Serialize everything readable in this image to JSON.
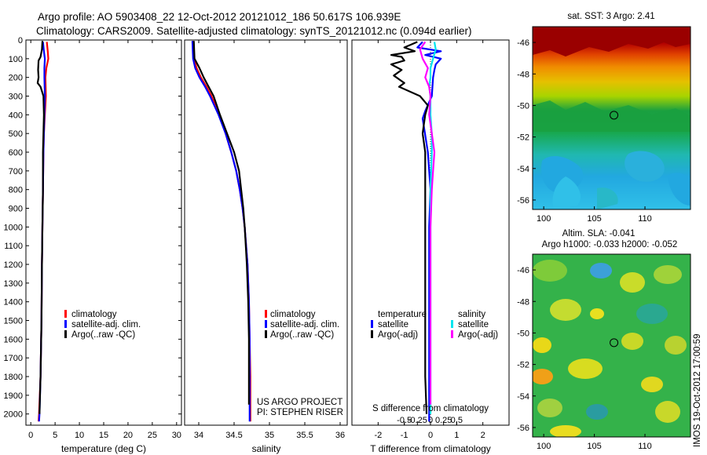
{
  "header": {
    "line1": "Argo profile: AO 5903408_22 12-Oct-2012 20121012_186 50.617S 106.939E",
    "line2": "Climatology: CARS2009. Satellite-adjusted climatology: synTS_20121012.nc (0.094d earlier)"
  },
  "side_note": "IMOS 19-Oct-2012 17:00:59",
  "colors": {
    "climatology": "#ff0000",
    "satellite": "#0000ff",
    "argo": "#000000",
    "satellite_sal": "#00e5ee",
    "argo_sal": "#ff00ff"
  },
  "chart_data": [
    {
      "type": "line",
      "panel": "temperature",
      "xlabel": "temperature (deg C)",
      "xlim": [
        -1,
        31
      ],
      "ylim": [
        2060,
        0
      ],
      "xticks": [
        0,
        5,
        10,
        15,
        20,
        25,
        30
      ],
      "yticks": [
        0,
        100,
        200,
        300,
        400,
        500,
        600,
        700,
        800,
        900,
        1000,
        1100,
        1200,
        1300,
        1400,
        1500,
        1600,
        1700,
        1800,
        1900,
        2000
      ],
      "legend": [
        "climatology",
        "satellite-adj. clim.",
        "Argo(..raw -QC)"
      ],
      "series": [
        {
          "name": "climatology",
          "color": "#ff0000",
          "y": [
            10,
            60,
            100,
            150,
            200,
            300,
            400,
            500,
            600,
            800,
            1000,
            1200,
            1500,
            1800,
            2000,
            2040
          ],
          "x": [
            3.3,
            3.5,
            3.6,
            3.2,
            3.0,
            3.1,
            2.9,
            2.7,
            2.6,
            2.5,
            2.4,
            2.3,
            2.2,
            2.0,
            1.7,
            1.6
          ]
        },
        {
          "name": "satellite-adj. clim.",
          "color": "#0000ff",
          "y": [
            10,
            60,
            100,
            150,
            200,
            300,
            400,
            500,
            600,
            800,
            1000,
            1200,
            1500,
            1800,
            2000,
            2040
          ],
          "x": [
            2.5,
            2.7,
            2.9,
            2.8,
            2.8,
            2.9,
            2.8,
            2.7,
            2.6,
            2.5,
            2.4,
            2.3,
            2.2,
            2.0,
            1.8,
            1.7
          ]
        },
        {
          "name": "Argo(..raw -QC)",
          "color": "#000000",
          "y": [
            5,
            50,
            90,
            110,
            160,
            200,
            230,
            250,
            300,
            400,
            500,
            600,
            800,
            1000,
            1200,
            1500,
            1800,
            2000
          ],
          "x": [
            2.4,
            2.3,
            2.0,
            1.6,
            1.5,
            1.6,
            1.4,
            2.0,
            2.6,
            2.7,
            2.6,
            2.5,
            2.5,
            2.4,
            2.3,
            2.2,
            2.0,
            1.8
          ]
        }
      ]
    },
    {
      "type": "line",
      "panel": "salinity",
      "xlabel": "salinity",
      "xlim": [
        33.8,
        36.1
      ],
      "ylim": [
        2060,
        0
      ],
      "xticks": [
        34,
        34.5,
        35,
        35.5,
        36
      ],
      "legend": [
        "climatology",
        "satellite-adj. clim.",
        "Argo(..raw -QC)"
      ],
      "annotations": [
        "US ARGO PROJECT",
        "PI: STEPHEN RISER"
      ],
      "series": [
        {
          "name": "climatology",
          "color": "#ff0000",
          "y": [
            5,
            100,
            150,
            200,
            250,
            300,
            400,
            500,
            600,
            700,
            800,
            900,
            1000,
            1200,
            1400,
            1600,
            1800,
            2000,
            2040
          ],
          "x": [
            33.92,
            33.93,
            33.97,
            34.03,
            34.11,
            34.18,
            34.29,
            34.38,
            34.46,
            34.53,
            34.58,
            34.62,
            34.65,
            34.69,
            34.71,
            34.72,
            34.73,
            34.73,
            34.73
          ]
        },
        {
          "name": "satellite-adj. clim.",
          "color": "#0000ff",
          "y": [
            5,
            100,
            150,
            200,
            250,
            300,
            400,
            500,
            600,
            700,
            800,
            900,
            1000,
            1200,
            1400,
            1600,
            1800,
            2000,
            2040
          ],
          "x": [
            33.91,
            33.92,
            33.95,
            34.01,
            34.09,
            34.16,
            34.28,
            34.38,
            34.46,
            34.53,
            34.58,
            34.62,
            34.65,
            34.69,
            34.71,
            34.72,
            34.72,
            34.72,
            34.72
          ]
        },
        {
          "name": "Argo(..raw -QC)",
          "color": "#000000",
          "y": [
            5,
            100,
            150,
            200,
            250,
            300,
            400,
            500,
            600,
            700,
            800,
            900,
            1000,
            1200,
            1400,
            1600,
            1800,
            1950
          ],
          "x": [
            33.93,
            33.94,
            34.01,
            34.07,
            34.14,
            34.21,
            34.3,
            34.4,
            34.5,
            34.57,
            34.6,
            34.63,
            34.65,
            34.68,
            34.7,
            34.71,
            34.71,
            34.71
          ]
        }
      ]
    },
    {
      "type": "line",
      "panel": "differences",
      "xlabel": "T difference from climatology",
      "top_label": "S difference from climatology",
      "xlim": [
        -3,
        3
      ],
      "ylim": [
        2060,
        0
      ],
      "xticks": [
        -2,
        -1,
        0,
        1,
        2
      ],
      "top_ticks": [
        {
          "v": -1.0,
          "label": "-0.5"
        },
        {
          "v": -0.5,
          "label": "-0.25"
        },
        {
          "v": 0,
          "label": "0"
        },
        {
          "v": 0.5,
          "label": "0.25"
        },
        {
          "v": 1.0,
          "label": "0.5"
        }
      ],
      "legend_headers": [
        "temperature",
        "salinity"
      ],
      "legend": [
        "satellite",
        "Argo(-adj)",
        "satellite",
        "Argo(-adj)"
      ],
      "series": [
        {
          "name": "satellite",
          "group": "temperature",
          "color": "#0000ff",
          "y": [
            10,
            40,
            60,
            80,
            100,
            130,
            160,
            200,
            300,
            380,
            420,
            600,
            800,
            1000,
            1200,
            1500,
            1800,
            2000,
            2040
          ],
          "x": [
            -0.3,
            -0.5,
            0.4,
            -0.2,
            0.4,
            0.2,
            0.15,
            0.1,
            0.05,
            -0.2,
            -0.3,
            -0.1,
            0.0,
            -0.05,
            -0.05,
            -0.05,
            -0.05,
            -0.05,
            -0.05
          ]
        },
        {
          "name": "Argo(-adj)",
          "group": "temperature",
          "color": "#000000",
          "y": [
            10,
            40,
            60,
            80,
            90,
            110,
            130,
            160,
            190,
            230,
            250,
            300,
            350,
            400,
            500,
            600,
            800,
            1000,
            1200,
            1500,
            1800,
            2000
          ],
          "x": [
            -0.5,
            -1.0,
            -0.6,
            -1.5,
            -1.1,
            -1.0,
            -1.5,
            -1.1,
            -1.4,
            -1.0,
            -1.2,
            -0.4,
            -0.1,
            -0.2,
            -0.3,
            -0.2,
            -0.2,
            -0.2,
            -0.2,
            -0.2,
            -0.2,
            -0.15
          ]
        },
        {
          "name": "satellite",
          "group": "salinity",
          "color": "#00e5ee",
          "y": [
            10,
            50,
            100,
            150,
            200,
            250,
            300,
            400,
            500,
            600,
            800,
            1000,
            1200,
            1500,
            1800,
            2000
          ],
          "x": [
            0.15,
            0.2,
            0.1,
            0.0,
            0.0,
            -0.05,
            0.0,
            0.0,
            0.05,
            0.05,
            0.0,
            0.0,
            0.0,
            0.0,
            0.0,
            0.0
          ]
        },
        {
          "name": "Argo(-adj)",
          "group": "salinity",
          "color": "#ff00ff",
          "y": [
            10,
            50,
            100,
            150,
            200,
            250,
            300,
            400,
            500,
            600,
            700,
            800,
            1000,
            1200,
            1500,
            1800,
            1950
          ],
          "x": [
            -0.2,
            -0.4,
            -0.3,
            -0.1,
            -0.2,
            -0.05,
            0.0,
            -0.05,
            0.05,
            0.15,
            0.1,
            0.05,
            0.0,
            0.0,
            0.0,
            0.0,
            0.0
          ]
        }
      ]
    },
    {
      "type": "heatmap",
      "panel": "sst-map",
      "title": "sat. SST: 3 Argo: 2.41",
      "xlim": [
        98.9,
        114.5
      ],
      "ylim": [
        -56.6,
        -45.0
      ],
      "xticks": [
        100,
        105,
        110
      ],
      "yticks": [
        -46,
        -48,
        -50,
        -52,
        -54,
        -56
      ],
      "marker": {
        "lon": 106.939,
        "lat": -50.617
      }
    },
    {
      "type": "heatmap",
      "panel": "sla-map",
      "title": "Altim. SLA: -0.041",
      "subtitle": "Argo h1000: -0.033 h2000: -0.052",
      "xlim": [
        98.9,
        114.5
      ],
      "ylim": [
        -56.6,
        -45.0
      ],
      "xticks": [
        100,
        105,
        110
      ],
      "yticks": [
        -46,
        -48,
        -50,
        -52,
        -54,
        -56
      ],
      "marker": {
        "lon": 106.939,
        "lat": -50.617
      }
    }
  ]
}
